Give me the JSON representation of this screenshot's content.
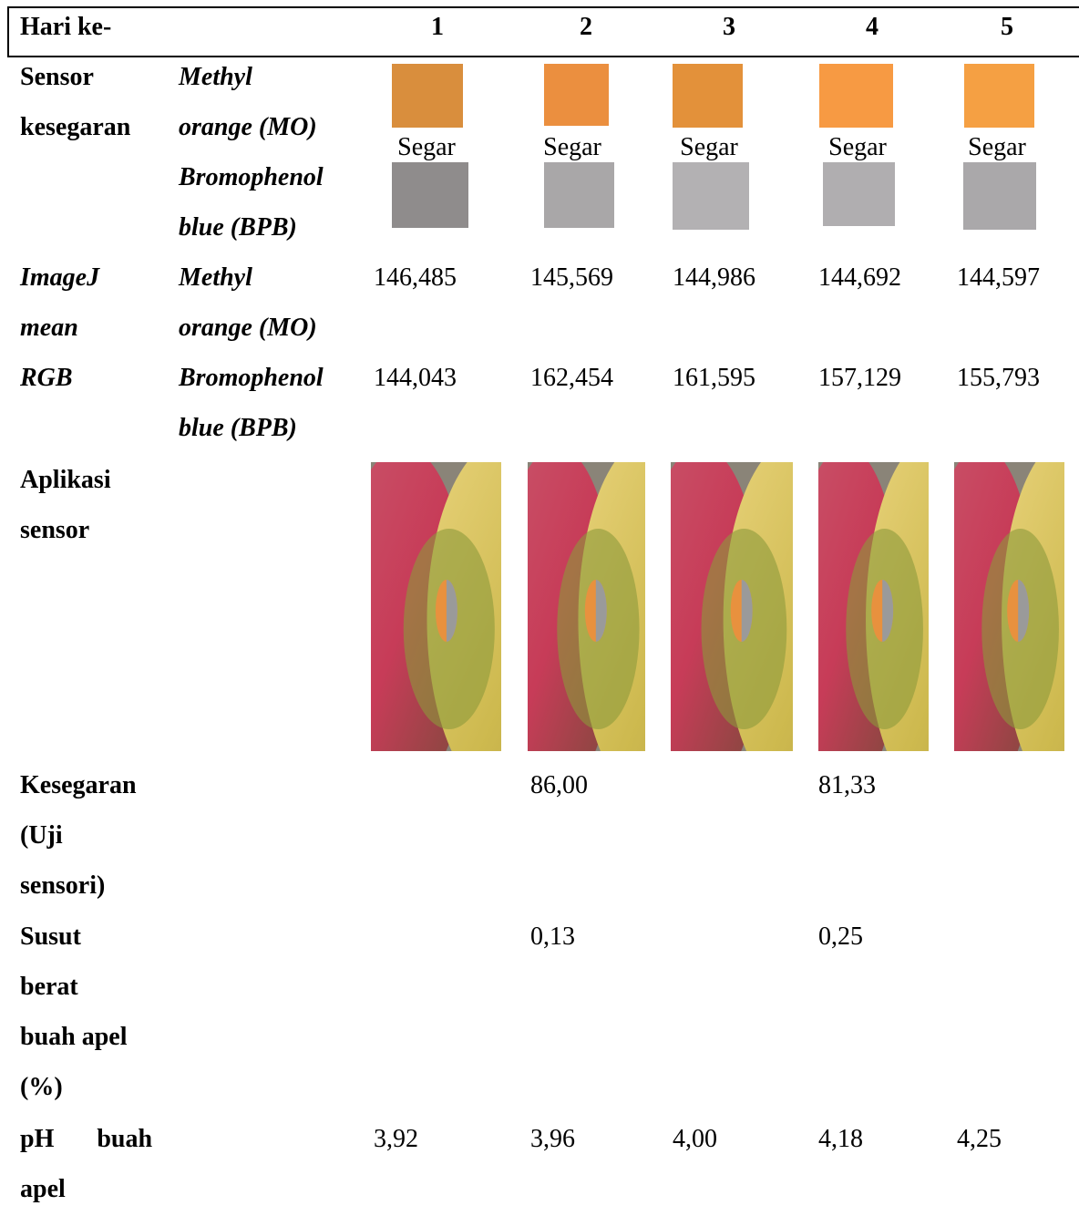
{
  "table": {
    "header": [
      "Hari ke-",
      "1",
      "2",
      "3",
      "4",
      "5"
    ],
    "sensor": {
      "label": [
        "Sensor",
        "kesegaran"
      ],
      "mo_label": [
        "Methyl",
        "orange (MO)"
      ],
      "bpb_label": [
        "Bromophenol",
        "blue (BPB)"
      ],
      "status": [
        "Segar",
        "Segar",
        "Segar",
        "Segar",
        "Segar"
      ]
    },
    "imagej": {
      "label": [
        "ImageJ",
        "mean",
        "RGB"
      ],
      "mo_label": [
        "Methyl",
        "orange (MO)"
      ],
      "bpb_label": [
        "Bromophenol",
        "blue (BPB)"
      ],
      "mo_values": [
        "146,485",
        "145,569",
        "144,986",
        "144,692",
        "144,597"
      ],
      "bpb_values": [
        "144,043",
        "162,454",
        "161,595",
        "157,129",
        "155,793"
      ]
    },
    "aplikasi": {
      "label": [
        "Aplikasi",
        "sensor"
      ]
    },
    "kesegaran": {
      "label": [
        "Kesegaran",
        "(Uji",
        "sensori)"
      ],
      "values": [
        null,
        "86,00",
        null,
        "81,33",
        null
      ]
    },
    "susut": {
      "label": [
        "Susut",
        "berat",
        "buah apel",
        "(%)"
      ],
      "values": [
        null,
        "0,13",
        null,
        "0,25",
        null
      ]
    },
    "ph": {
      "label": [
        "pH buah",
        "apel"
      ],
      "values": [
        "3,92",
        "3,96",
        "4,00",
        "4,18",
        "4,25"
      ]
    }
  }
}
